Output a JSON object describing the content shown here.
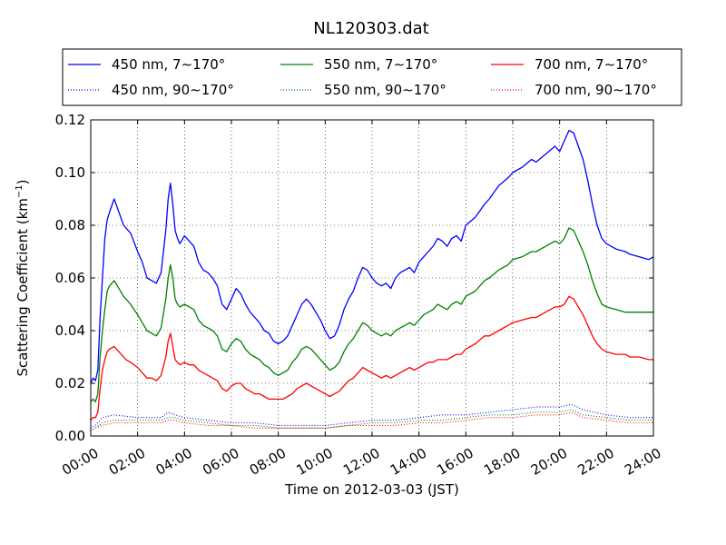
{
  "chart_data": {
    "type": "line",
    "title": "NL120303.dat",
    "xlabel": "Time on 2012-03-03 (JST)",
    "ylabel_prefix": "Scattering Coefficient (km",
    "ylabel_exp": "−1",
    "ylabel_suffix": ")",
    "xlim": [
      0,
      24
    ],
    "ylim": [
      0,
      0.12
    ],
    "grid": true,
    "legend_position": "top",
    "x_ticks": [
      0,
      2,
      4,
      6,
      8,
      10,
      12,
      14,
      16,
      18,
      20,
      22,
      24
    ],
    "x_tick_labels": [
      "00:00",
      "02:00",
      "04:00",
      "06:00",
      "08:00",
      "10:00",
      "12:00",
      "14:00",
      "16:00",
      "18:00",
      "20:00",
      "22:00",
      "24:00"
    ],
    "y_ticks": [
      0,
      0.02,
      0.04,
      0.06,
      0.08,
      0.1,
      0.12
    ],
    "y_tick_labels": [
      "0.00",
      "0.02",
      "0.04",
      "0.06",
      "0.08",
      "0.10",
      "0.12"
    ],
    "series": [
      {
        "name": "450 nm, 7∼170°",
        "color": "#0000ff",
        "style": "solid",
        "x": [
          0,
          0.1,
          0.2,
          0.3,
          0.4,
          0.5,
          0.6,
          0.7,
          0.8,
          1.0,
          1.2,
          1.4,
          1.5,
          1.7,
          2.0,
          2.2,
          2.4,
          2.6,
          2.8,
          3.0,
          3.2,
          3.3,
          3.4,
          3.5,
          3.6,
          3.7,
          3.8,
          4.0,
          4.2,
          4.4,
          4.6,
          4.8,
          5.0,
          5.2,
          5.4,
          5.6,
          5.8,
          6.0,
          6.2,
          6.4,
          6.6,
          6.8,
          7.0,
          7.2,
          7.4,
          7.6,
          7.8,
          8.0,
          8.2,
          8.4,
          8.6,
          8.8,
          9.0,
          9.2,
          9.4,
          9.6,
          9.8,
          10.0,
          10.2,
          10.4,
          10.6,
          10.8,
          11.0,
          11.2,
          11.4,
          11.6,
          11.8,
          12.0,
          12.2,
          12.4,
          12.6,
          12.8,
          13.0,
          13.2,
          13.4,
          13.6,
          13.8,
          14.0,
          14.2,
          14.4,
          14.6,
          14.8,
          15.0,
          15.2,
          15.4,
          15.6,
          15.8,
          16.0,
          16.4,
          16.8,
          17.0,
          17.4,
          17.8,
          18.0,
          18.4,
          18.8,
          19.0,
          19.4,
          19.8,
          20.0,
          20.2,
          20.4,
          20.6,
          20.8,
          21.0,
          21.2,
          21.4,
          21.6,
          21.8,
          22.0,
          22.4,
          22.8,
          23.0,
          23.4,
          23.8,
          24.0
        ],
        "y": [
          0.02,
          0.022,
          0.021,
          0.025,
          0.045,
          0.06,
          0.075,
          0.082,
          0.085,
          0.09,
          0.085,
          0.08,
          0.079,
          0.077,
          0.07,
          0.066,
          0.06,
          0.059,
          0.058,
          0.062,
          0.078,
          0.09,
          0.096,
          0.088,
          0.078,
          0.075,
          0.073,
          0.076,
          0.074,
          0.072,
          0.066,
          0.063,
          0.062,
          0.06,
          0.057,
          0.05,
          0.048,
          0.052,
          0.056,
          0.054,
          0.05,
          0.047,
          0.045,
          0.043,
          0.04,
          0.039,
          0.036,
          0.035,
          0.036,
          0.038,
          0.042,
          0.046,
          0.05,
          0.052,
          0.05,
          0.047,
          0.044,
          0.04,
          0.037,
          0.038,
          0.042,
          0.048,
          0.052,
          0.055,
          0.06,
          0.064,
          0.063,
          0.06,
          0.058,
          0.057,
          0.058,
          0.056,
          0.06,
          0.062,
          0.063,
          0.064,
          0.062,
          0.066,
          0.068,
          0.07,
          0.072,
          0.075,
          0.074,
          0.072,
          0.075,
          0.076,
          0.074,
          0.08,
          0.083,
          0.088,
          0.09,
          0.095,
          0.098,
          0.1,
          0.102,
          0.105,
          0.104,
          0.107,
          0.11,
          0.108,
          0.112,
          0.116,
          0.115,
          0.11,
          0.105,
          0.097,
          0.088,
          0.08,
          0.075,
          0.073,
          0.071,
          0.07,
          0.069,
          0.068,
          0.067,
          0.068
        ]
      },
      {
        "name": "550 nm, 7∼170°",
        "color": "#008000",
        "style": "solid",
        "x": [
          0,
          0.1,
          0.2,
          0.3,
          0.4,
          0.5,
          0.6,
          0.7,
          0.8,
          1.0,
          1.2,
          1.4,
          1.5,
          1.7,
          2.0,
          2.2,
          2.4,
          2.6,
          2.8,
          3.0,
          3.2,
          3.3,
          3.4,
          3.5,
          3.6,
          3.7,
          3.8,
          4.0,
          4.2,
          4.4,
          4.6,
          4.8,
          5.0,
          5.2,
          5.4,
          5.6,
          5.8,
          6.0,
          6.2,
          6.4,
          6.6,
          6.8,
          7.0,
          7.2,
          7.4,
          7.6,
          7.8,
          8.0,
          8.2,
          8.4,
          8.6,
          8.8,
          9.0,
          9.2,
          9.4,
          9.6,
          9.8,
          10.0,
          10.2,
          10.4,
          10.6,
          10.8,
          11.0,
          11.2,
          11.4,
          11.6,
          11.8,
          12.0,
          12.2,
          12.4,
          12.6,
          12.8,
          13.0,
          13.2,
          13.4,
          13.6,
          13.8,
          14.0,
          14.2,
          14.4,
          14.6,
          14.8,
          15.0,
          15.2,
          15.4,
          15.6,
          15.8,
          16.0,
          16.4,
          16.8,
          17.0,
          17.4,
          17.8,
          18.0,
          18.4,
          18.8,
          19.0,
          19.4,
          19.8,
          20.0,
          20.2,
          20.4,
          20.6,
          20.8,
          21.0,
          21.2,
          21.4,
          21.6,
          21.8,
          22.0,
          22.4,
          22.8,
          23.0,
          23.4,
          23.8,
          24.0
        ],
        "y": [
          0.013,
          0.014,
          0.013,
          0.016,
          0.03,
          0.04,
          0.048,
          0.055,
          0.057,
          0.059,
          0.056,
          0.053,
          0.052,
          0.05,
          0.046,
          0.043,
          0.04,
          0.039,
          0.038,
          0.041,
          0.052,
          0.06,
          0.065,
          0.06,
          0.052,
          0.05,
          0.049,
          0.05,
          0.049,
          0.048,
          0.044,
          0.042,
          0.041,
          0.04,
          0.038,
          0.033,
          0.032,
          0.035,
          0.037,
          0.036,
          0.033,
          0.031,
          0.03,
          0.029,
          0.027,
          0.026,
          0.024,
          0.023,
          0.024,
          0.025,
          0.028,
          0.03,
          0.033,
          0.034,
          0.033,
          0.031,
          0.029,
          0.027,
          0.025,
          0.026,
          0.028,
          0.032,
          0.035,
          0.037,
          0.04,
          0.043,
          0.042,
          0.04,
          0.039,
          0.038,
          0.039,
          0.038,
          0.04,
          0.041,
          0.042,
          0.043,
          0.042,
          0.044,
          0.046,
          0.047,
          0.048,
          0.05,
          0.049,
          0.048,
          0.05,
          0.051,
          0.05,
          0.053,
          0.055,
          0.059,
          0.06,
          0.063,
          0.065,
          0.067,
          0.068,
          0.07,
          0.07,
          0.072,
          0.074,
          0.073,
          0.075,
          0.079,
          0.078,
          0.074,
          0.07,
          0.065,
          0.059,
          0.054,
          0.05,
          0.049,
          0.048,
          0.047,
          0.047,
          0.047,
          0.047,
          0.047
        ]
      },
      {
        "name": "700 nm, 7∼170°",
        "color": "#ff0000",
        "style": "solid",
        "x": [
          0,
          0.1,
          0.2,
          0.3,
          0.4,
          0.5,
          0.6,
          0.7,
          0.8,
          1.0,
          1.2,
          1.4,
          1.5,
          1.7,
          2.0,
          2.2,
          2.4,
          2.6,
          2.8,
          3.0,
          3.2,
          3.3,
          3.4,
          3.5,
          3.6,
          3.7,
          3.8,
          4.0,
          4.2,
          4.4,
          4.6,
          4.8,
          5.0,
          5.2,
          5.4,
          5.6,
          5.8,
          6.0,
          6.2,
          6.4,
          6.6,
          6.8,
          7.0,
          7.2,
          7.4,
          7.6,
          7.8,
          8.0,
          8.2,
          8.4,
          8.6,
          8.8,
          9.0,
          9.2,
          9.4,
          9.6,
          9.8,
          10.0,
          10.2,
          10.4,
          10.6,
          10.8,
          11.0,
          11.2,
          11.4,
          11.6,
          11.8,
          12.0,
          12.2,
          12.4,
          12.6,
          12.8,
          13.0,
          13.2,
          13.4,
          13.6,
          13.8,
          14.0,
          14.2,
          14.4,
          14.6,
          14.8,
          15.0,
          15.2,
          15.4,
          15.6,
          15.8,
          16.0,
          16.4,
          16.8,
          17.0,
          17.4,
          17.8,
          18.0,
          18.4,
          18.8,
          19.0,
          19.4,
          19.8,
          20.0,
          20.2,
          20.4,
          20.6,
          20.8,
          21.0,
          21.2,
          21.4,
          21.6,
          21.8,
          22.0,
          22.4,
          22.8,
          23.0,
          23.4,
          23.8,
          24.0
        ],
        "y": [
          0.006,
          0.007,
          0.007,
          0.009,
          0.018,
          0.025,
          0.029,
          0.032,
          0.033,
          0.034,
          0.032,
          0.03,
          0.029,
          0.028,
          0.026,
          0.024,
          0.022,
          0.022,
          0.021,
          0.023,
          0.03,
          0.036,
          0.039,
          0.034,
          0.029,
          0.028,
          0.027,
          0.028,
          0.027,
          0.027,
          0.025,
          0.024,
          0.023,
          0.022,
          0.021,
          0.018,
          0.017,
          0.019,
          0.02,
          0.02,
          0.018,
          0.017,
          0.016,
          0.016,
          0.015,
          0.014,
          0.014,
          0.014,
          0.014,
          0.015,
          0.016,
          0.018,
          0.019,
          0.02,
          0.019,
          0.018,
          0.017,
          0.016,
          0.015,
          0.016,
          0.017,
          0.019,
          0.021,
          0.022,
          0.024,
          0.026,
          0.025,
          0.024,
          0.023,
          0.022,
          0.023,
          0.022,
          0.023,
          0.024,
          0.025,
          0.026,
          0.025,
          0.026,
          0.027,
          0.028,
          0.028,
          0.029,
          0.029,
          0.029,
          0.03,
          0.031,
          0.031,
          0.033,
          0.035,
          0.038,
          0.038,
          0.04,
          0.042,
          0.043,
          0.044,
          0.045,
          0.045,
          0.047,
          0.049,
          0.049,
          0.05,
          0.053,
          0.052,
          0.049,
          0.046,
          0.042,
          0.038,
          0.035,
          0.033,
          0.032,
          0.031,
          0.031,
          0.03,
          0.03,
          0.029,
          0.029
        ]
      },
      {
        "name": "450 nm, 90∼170°",
        "color": "#0000ff",
        "style": "dotted",
        "x": [
          0,
          0.2,
          0.5,
          1,
          2,
          3,
          3.3,
          3.6,
          4,
          5,
          6,
          7,
          8,
          9,
          10,
          11,
          12,
          13,
          14,
          15,
          16,
          17,
          18,
          19,
          20,
          20.5,
          21,
          22,
          23,
          24
        ],
        "y": [
          0.003,
          0.004,
          0.007,
          0.008,
          0.007,
          0.007,
          0.009,
          0.008,
          0.007,
          0.006,
          0.005,
          0.005,
          0.004,
          0.004,
          0.004,
          0.005,
          0.006,
          0.006,
          0.007,
          0.008,
          0.008,
          0.009,
          0.01,
          0.011,
          0.011,
          0.012,
          0.01,
          0.008,
          0.007,
          0.007
        ]
      },
      {
        "name": "550 nm, 90∼170°",
        "color": "#008000",
        "style": "dotted",
        "x": [
          0,
          0.2,
          0.5,
          1,
          2,
          3,
          3.3,
          3.6,
          4,
          5,
          6,
          7,
          8,
          9,
          10,
          11,
          12,
          13,
          14,
          15,
          16,
          17,
          18,
          19,
          20,
          20.5,
          21,
          22,
          23,
          24
        ],
        "y": [
          0.002,
          0.003,
          0.005,
          0.006,
          0.006,
          0.006,
          0.007,
          0.007,
          0.006,
          0.005,
          0.004,
          0.004,
          0.003,
          0.003,
          0.003,
          0.004,
          0.005,
          0.005,
          0.006,
          0.006,
          0.007,
          0.008,
          0.008,
          0.009,
          0.009,
          0.01,
          0.008,
          0.007,
          0.006,
          0.006
        ]
      },
      {
        "name": "700 nm, 90∼170°",
        "color": "#ff0000",
        "style": "dotted",
        "x": [
          0,
          0.2,
          0.5,
          1,
          2,
          3,
          3.3,
          3.6,
          4,
          5,
          6,
          7,
          8,
          9,
          10,
          11,
          12,
          13,
          14,
          15,
          16,
          17,
          18,
          19,
          20,
          20.5,
          21,
          22,
          23,
          24
        ],
        "y": [
          0.002,
          0.003,
          0.004,
          0.005,
          0.005,
          0.005,
          0.006,
          0.006,
          0.005,
          0.004,
          0.004,
          0.003,
          0.003,
          0.003,
          0.003,
          0.004,
          0.004,
          0.004,
          0.005,
          0.005,
          0.006,
          0.007,
          0.007,
          0.008,
          0.008,
          0.009,
          0.007,
          0.006,
          0.005,
          0.005
        ]
      }
    ]
  }
}
